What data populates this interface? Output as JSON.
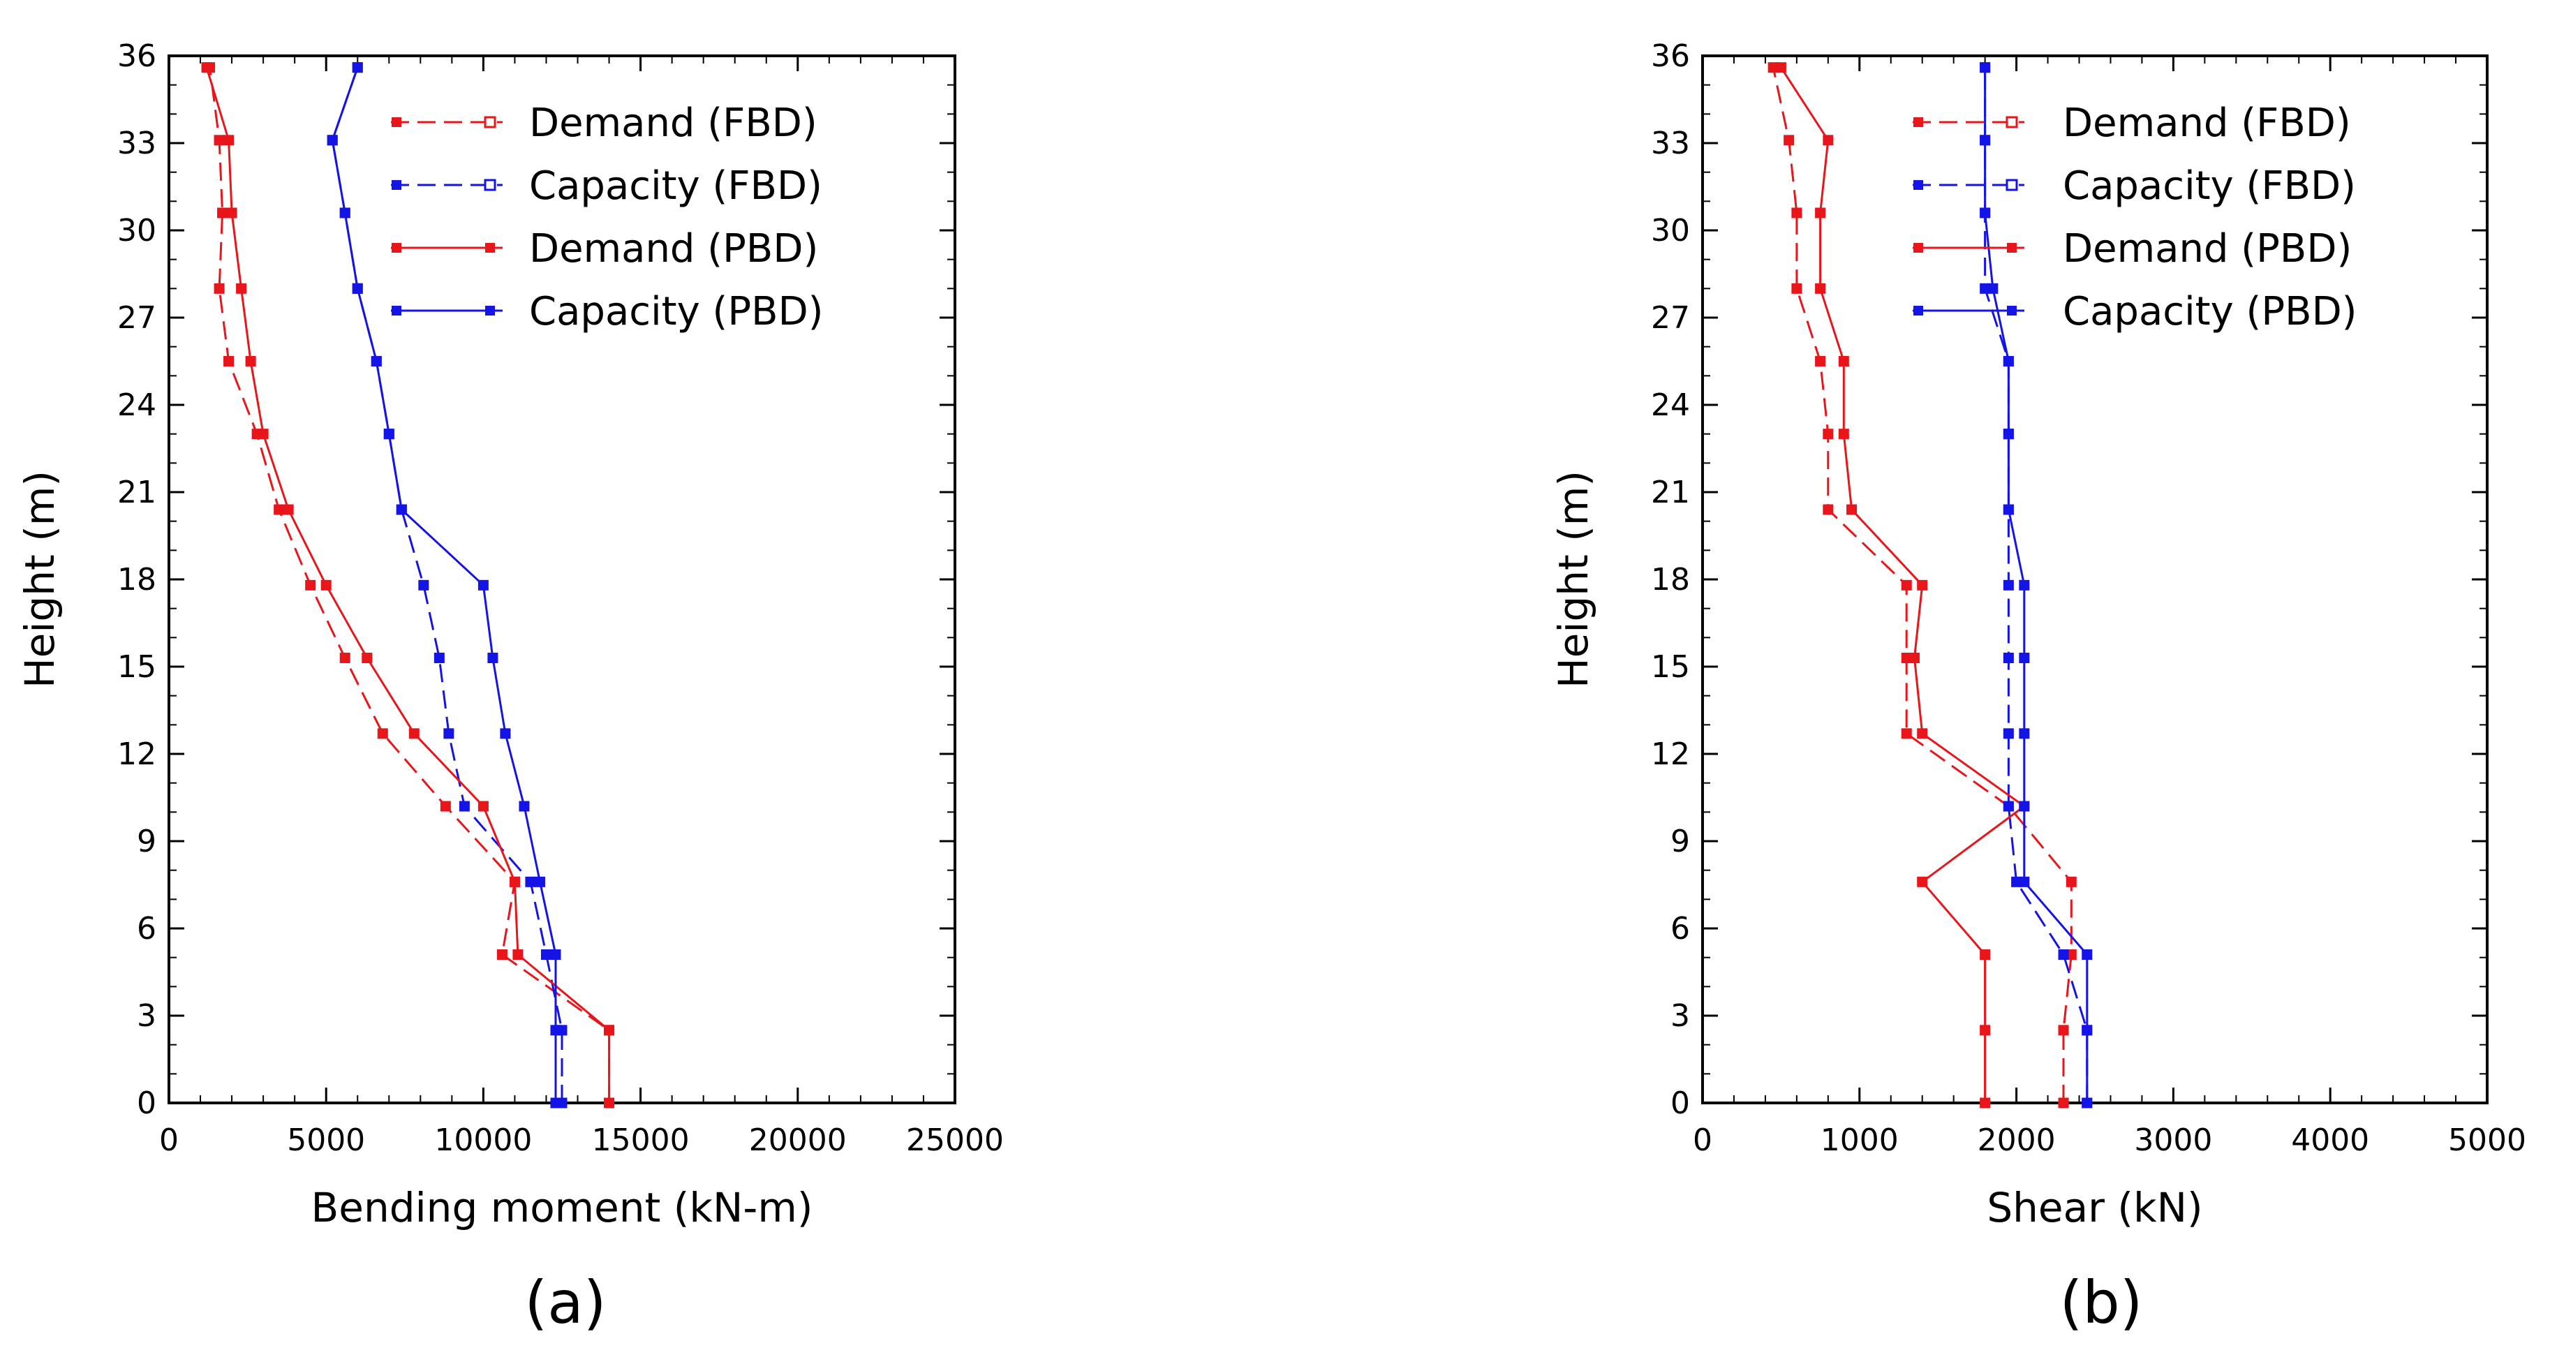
{
  "figure": {
    "panels": [
      "(a)",
      "(b)"
    ]
  },
  "chart_data": [
    {
      "type": "line",
      "panel_label": "(a)",
      "title": "",
      "xlabel": "Bending moment (kN-m)",
      "ylabel": "Height (m)",
      "xlim": [
        0,
        25000
      ],
      "ylim": [
        0,
        36
      ],
      "xticks": [
        0,
        5000,
        10000,
        15000,
        20000,
        25000
      ],
      "yticks": [
        0,
        3,
        6,
        9,
        12,
        15,
        18,
        21,
        24,
        27,
        30,
        33,
        36
      ],
      "legend": "top-right",
      "series": [
        {
          "name": "Demand (FBD)",
          "color": "#e8151b",
          "dashed": true,
          "marker": "open-square",
          "x": [
            14000,
            14000,
            10600,
            11000,
            8800,
            6800,
            5600,
            4500,
            3500,
            2800,
            1900,
            1600,
            1700,
            1600,
            1300
          ],
          "y": [
            0,
            2.5,
            5.1,
            7.6,
            10.2,
            12.7,
            15.3,
            17.8,
            20.4,
            23.0,
            25.5,
            28.0,
            30.6,
            33.1,
            35.6
          ]
        },
        {
          "name": "Capacity (FBD)",
          "color": "#1414e6",
          "dashed": true,
          "marker": "open-square",
          "x": [
            12500,
            12500,
            12000,
            11500,
            9400,
            8900,
            8600,
            8100,
            7400,
            7000,
            6600,
            6000,
            5600,
            5200,
            6000
          ],
          "y": [
            0,
            2.5,
            5.1,
            7.6,
            10.2,
            12.7,
            15.3,
            17.8,
            20.4,
            23.0,
            25.5,
            28.0,
            30.6,
            33.1,
            35.6
          ]
        },
        {
          "name": "Demand (PBD)",
          "color": "#e8151b",
          "dashed": false,
          "marker": "filled-square",
          "x": [
            14000,
            14000,
            11100,
            11000,
            10000,
            7800,
            6300,
            5000,
            3800,
            3000,
            2600,
            2300,
            2000,
            1900,
            1200
          ],
          "y": [
            0,
            2.5,
            5.1,
            7.6,
            10.2,
            12.7,
            15.3,
            17.8,
            20.4,
            23.0,
            25.5,
            28.0,
            30.6,
            33.1,
            35.6
          ]
        },
        {
          "name": "Capacity (PBD)",
          "color": "#1414e6",
          "dashed": false,
          "marker": "filled-square",
          "x": [
            12300,
            12300,
            12300,
            11800,
            11300,
            10700,
            10300,
            10000,
            7400,
            7000,
            6600,
            6000,
            5600,
            5200,
            6000
          ],
          "y": [
            0,
            2.5,
            5.1,
            7.6,
            10.2,
            12.7,
            15.3,
            17.8,
            20.4,
            23.0,
            25.5,
            28.0,
            30.6,
            33.1,
            35.6
          ]
        }
      ]
    },
    {
      "type": "line",
      "panel_label": "(b)",
      "title": "",
      "xlabel": "Shear (kN)",
      "ylabel": "Height (m)",
      "xlim": [
        0,
        5000
      ],
      "ylim": [
        0,
        36
      ],
      "xticks": [
        0,
        1000,
        2000,
        3000,
        4000,
        5000
      ],
      "yticks": [
        0,
        3,
        6,
        9,
        12,
        15,
        18,
        21,
        24,
        27,
        30,
        33,
        36
      ],
      "legend": "top-right",
      "series": [
        {
          "name": "Demand (FBD)",
          "color": "#e8151b",
          "dashed": true,
          "marker": "open-square",
          "x": [
            2300,
            2300,
            2350,
            2350,
            1950,
            1300,
            1300,
            1300,
            800,
            800,
            750,
            600,
            600,
            550,
            450
          ],
          "y": [
            0,
            2.5,
            5.1,
            7.6,
            10.2,
            12.7,
            15.3,
            17.8,
            20.4,
            23.0,
            25.5,
            28.0,
            30.6,
            33.1,
            35.6
          ]
        },
        {
          "name": "Capacity (FBD)",
          "color": "#1414e6",
          "dashed": true,
          "marker": "open-square",
          "x": [
            2450,
            2450,
            2300,
            2000,
            1950,
            1950,
            1950,
            1950,
            1950,
            1950,
            1950,
            1800,
            1800,
            1800,
            1800
          ],
          "y": [
            0,
            2.5,
            5.1,
            7.6,
            10.2,
            12.7,
            15.3,
            17.8,
            20.4,
            23.0,
            25.5,
            28.0,
            30.6,
            33.1,
            35.6
          ]
        },
        {
          "name": "Demand (PBD)",
          "color": "#e8151b",
          "dashed": false,
          "marker": "filled-square",
          "x": [
            1800,
            1800,
            1800,
            1400,
            2050,
            1400,
            1350,
            1400,
            950,
            900,
            900,
            750,
            750,
            800,
            500
          ],
          "y": [
            0,
            2.5,
            5.1,
            7.6,
            10.2,
            12.7,
            15.3,
            17.8,
            20.4,
            23.0,
            25.5,
            28.0,
            30.6,
            33.1,
            35.6
          ]
        },
        {
          "name": "Capacity (PBD)",
          "color": "#1414e6",
          "dashed": false,
          "marker": "filled-square",
          "x": [
            2450,
            2450,
            2450,
            2050,
            2050,
            2050,
            2050,
            2050,
            1950,
            1950,
            1950,
            1850,
            1800,
            1800,
            1800
          ],
          "y": [
            0,
            2.5,
            5.1,
            7.6,
            10.2,
            12.7,
            15.3,
            17.8,
            20.4,
            23.0,
            25.5,
            28.0,
            30.6,
            33.1,
            35.6
          ]
        }
      ]
    }
  ]
}
